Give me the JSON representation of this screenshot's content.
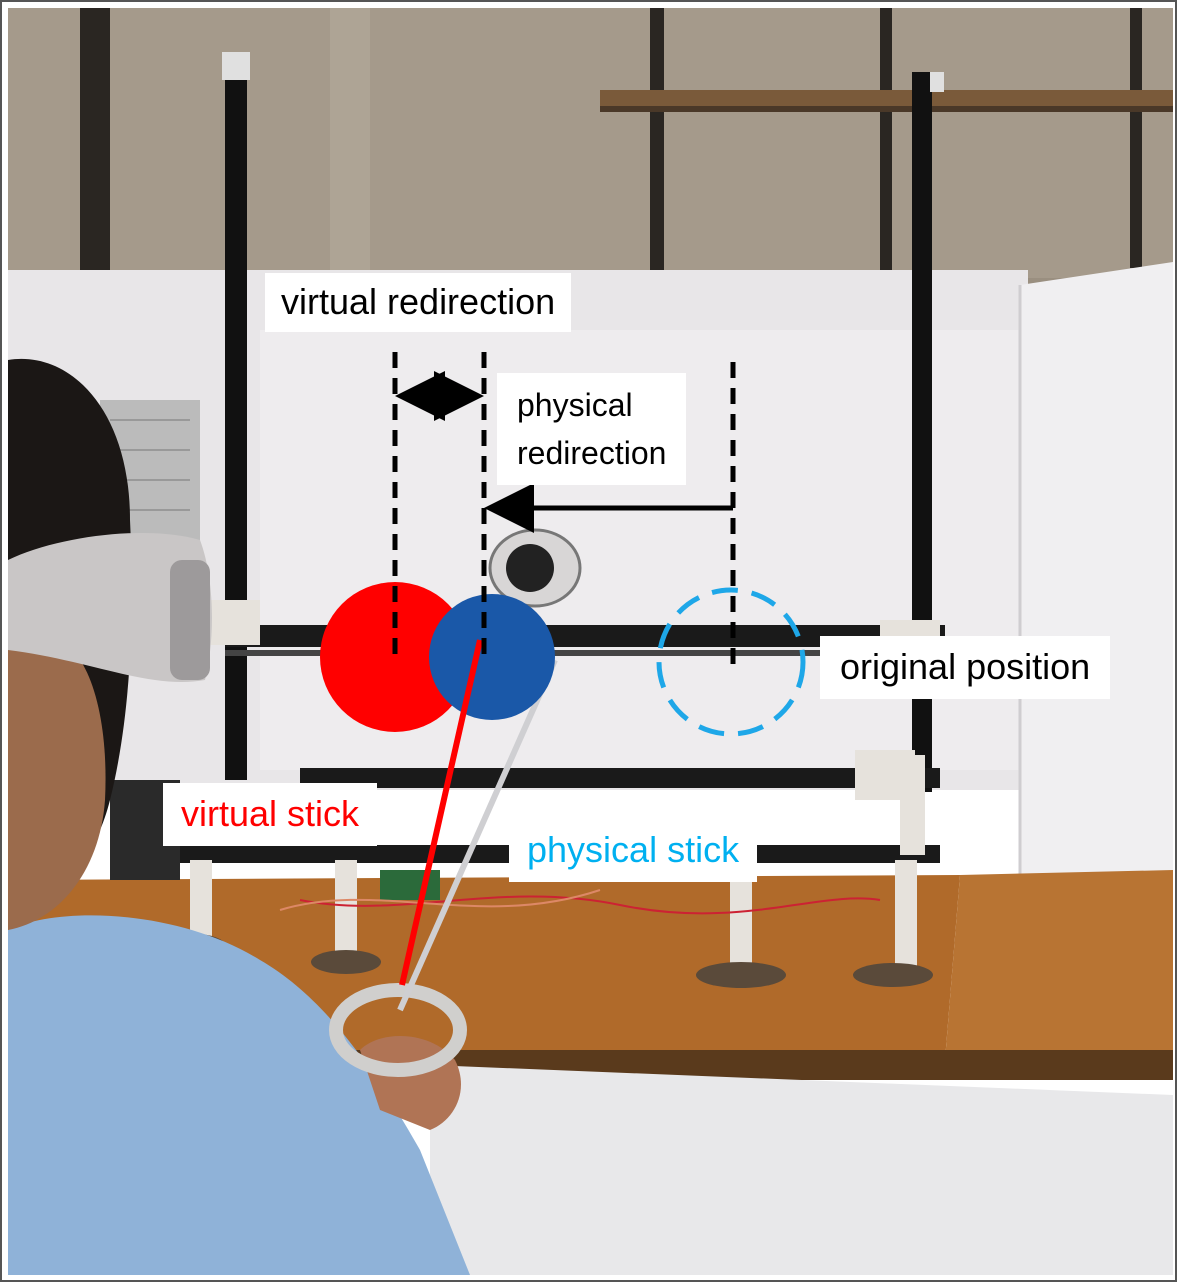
{
  "labels": {
    "virtual_redirection": "virtual redirection",
    "physical_redirection": "physical\nredirection",
    "original_position": "original position",
    "virtual_stick": "virtual stick",
    "physical_stick": "physical stick"
  },
  "colors": {
    "virtual": "#ff0000",
    "physical_text": "#00b0f0",
    "physical_ball": "#1a58a8",
    "original_ring": "#1ea7e8",
    "board": "#e8e6e8",
    "table": "#b06a2a"
  }
}
